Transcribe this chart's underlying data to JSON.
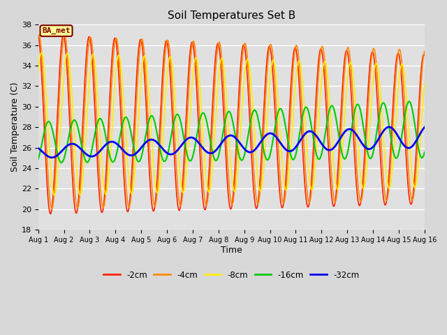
{
  "title": "Soil Temperatures Set B",
  "xlabel": "Time",
  "ylabel": "Soil Temperature (C)",
  "ylim": [
    18,
    38
  ],
  "xlim": [
    0,
    15
  ],
  "fig_bg_color": "#d8d8d8",
  "plot_bg_color": "#e0e0e0",
  "grid_color": "#ffffff",
  "annotation_label": "BA_met",
  "annotation_box_color": "#ffff99",
  "annotation_text_color": "#800000",
  "xtick_labels": [
    "Aug 1",
    "Aug 2",
    "Aug 3",
    "Aug 4",
    "Aug 5",
    "Aug 6",
    "Aug 7",
    "Aug 8",
    "Aug 9",
    "Aug 10",
    "Aug 11",
    "Aug 12",
    "Aug 13",
    "Aug 14",
    "Aug 15",
    "Aug 16"
  ],
  "series": {
    "neg2cm": {
      "label": "-2cm",
      "color": "#ff2200",
      "lw": 1.2
    },
    "neg4cm": {
      "label": "-4cm",
      "color": "#ff8800",
      "lw": 1.2
    },
    "neg8cm": {
      "label": "-8cm",
      "color": "#ffee00",
      "lw": 1.2
    },
    "neg16cm": {
      "label": "-16cm",
      "color": "#00cc00",
      "lw": 1.5
    },
    "neg32cm": {
      "label": "-32cm",
      "color": "#0000ee",
      "lw": 2.0
    }
  },
  "legend_colors": [
    "#ff2200",
    "#ff8800",
    "#ffee00",
    "#00cc00",
    "#0000ee"
  ],
  "legend_labels": [
    "-2cm",
    "-4cm",
    "-8cm",
    "-16cm",
    "-32cm"
  ]
}
